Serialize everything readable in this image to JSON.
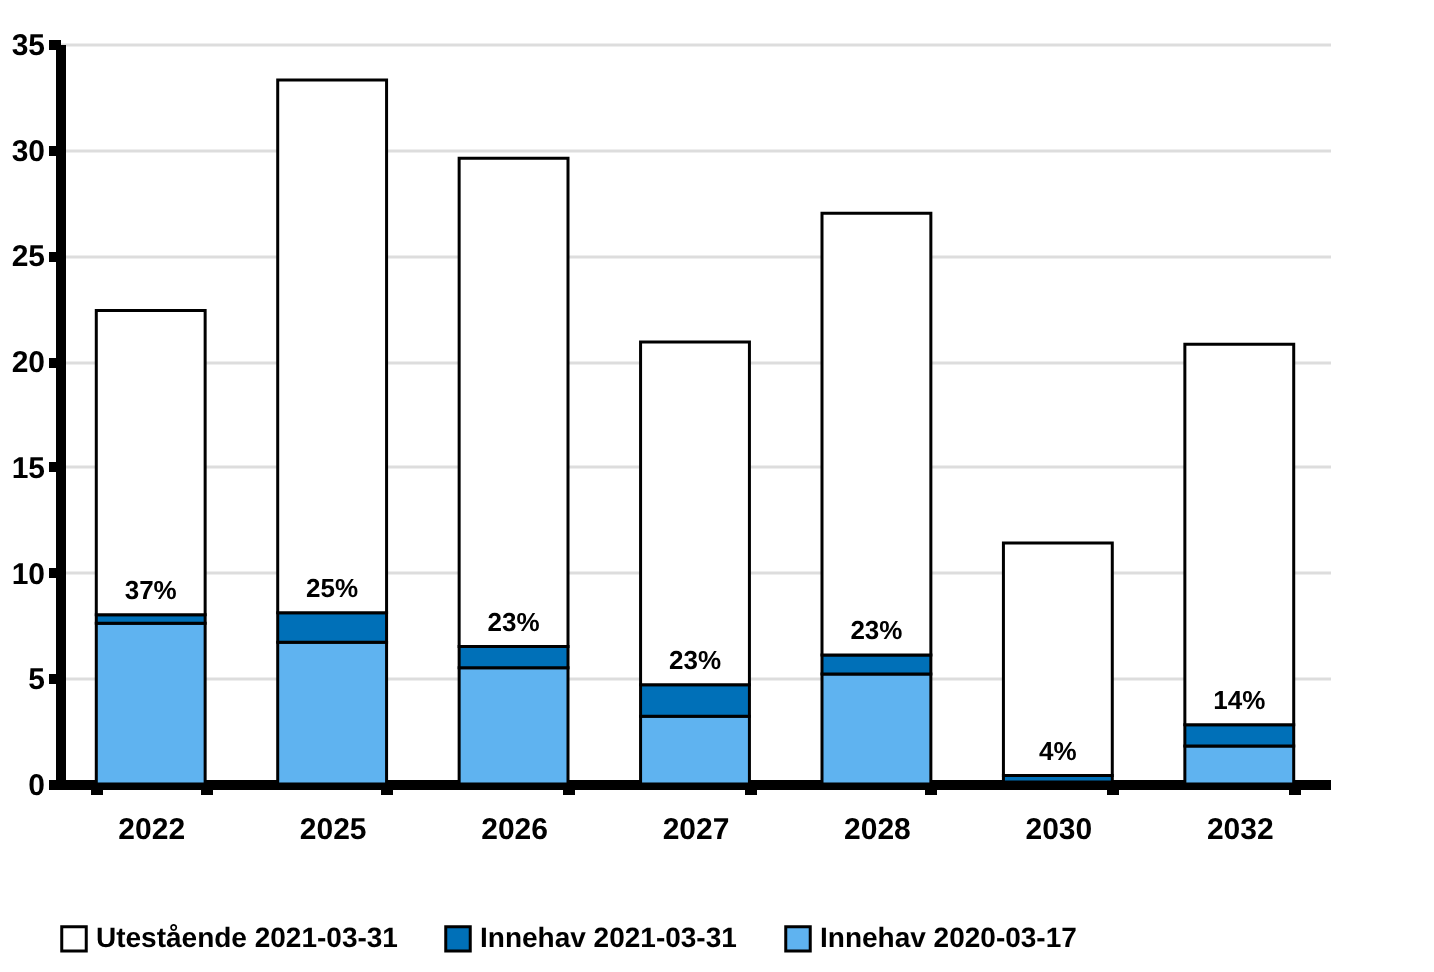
{
  "chart_data": {
    "type": "bar",
    "stacked": true,
    "categories": [
      "2022",
      "2025",
      "2026",
      "2027",
      "2028",
      "2030",
      "2032"
    ],
    "series": [
      {
        "name": "Innehav 2020-03-17",
        "color": "#5fb3f0",
        "values": [
          7.6,
          6.7,
          5.5,
          3.2,
          5.2,
          0.1,
          1.8
        ]
      },
      {
        "name": "Innehav 2021-03-31",
        "color": "#0070b8",
        "values": [
          0.4,
          1.4,
          1.0,
          1.5,
          0.9,
          0.3,
          1.0
        ]
      },
      {
        "name": "Utestående 2021-03-31",
        "color": "#ffffff",
        "values": [
          14.4,
          25.2,
          23.1,
          16.2,
          20.9,
          11.0,
          18.0
        ]
      }
    ],
    "ylim": [
      0,
      35
    ],
    "yticks": [
      0,
      5,
      10,
      15,
      20,
      25,
      30,
      35
    ],
    "grid": "y",
    "legend": "bottom",
    "annotations": [
      {
        "text": "37%",
        "x": "2022",
        "y": 8.0
      },
      {
        "text": "25%",
        "x": "2025",
        "y": 8.1
      },
      {
        "text": "23%",
        "x": "2026",
        "y": 6.5
      },
      {
        "text": "23%",
        "x": "2027",
        "y": 4.7
      },
      {
        "text": "23%",
        "x": "2028",
        "y": 6.1
      },
      {
        "text": "4%",
        "x": "2030",
        "y": 0.4
      },
      {
        "text": "14%",
        "x": "2032",
        "y": 2.8
      }
    ]
  }
}
